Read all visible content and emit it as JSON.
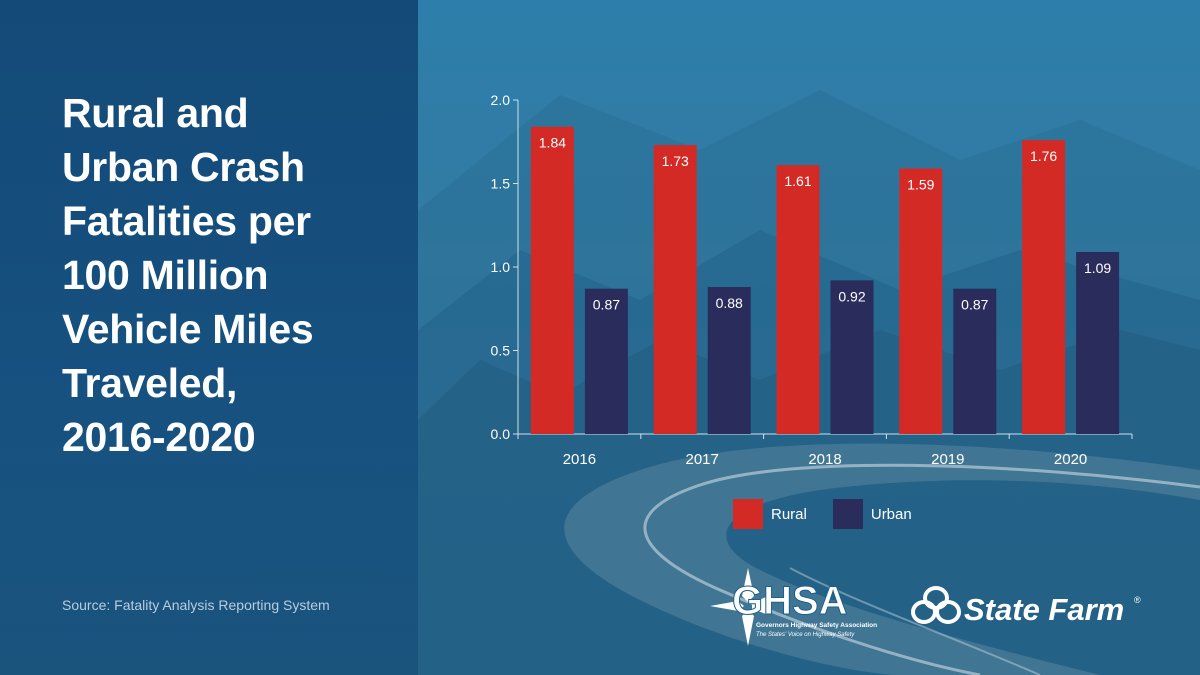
{
  "title_lines": [
    "Rural and",
    "Urban Crash",
    "Fatalities per",
    "100 Million",
    "Vehicle Miles",
    "Traveled,",
    "2016-2020"
  ],
  "source": "Source: Fatality Analysis Reporting System",
  "colors": {
    "rural": "#d42a26",
    "urban": "#2a2c5c",
    "panel": "#134c7a",
    "text": "#ffffff"
  },
  "legend": [
    {
      "label": "Rural",
      "color": "#d42a26"
    },
    {
      "label": "Urban",
      "color": "#2a2c5c"
    }
  ],
  "logos": {
    "ghsa": {
      "name": "GHSA",
      "line1": "Governors Highway Safety Association",
      "line2": "The States' Voice on Highway Safety"
    },
    "statefarm": {
      "name": "State Farm"
    }
  },
  "chart_data": {
    "type": "bar",
    "title": "Rural and Urban Crash Fatalities per 100 Million Vehicle Miles Traveled, 2016-2020",
    "categories": [
      "2016",
      "2017",
      "2018",
      "2019",
      "2020"
    ],
    "series": [
      {
        "name": "Rural",
        "values": [
          1.84,
          1.73,
          1.61,
          1.59,
          1.76
        ],
        "labels": [
          "1.84",
          "1.73",
          "1.61",
          "1.59",
          "1.76"
        ]
      },
      {
        "name": "Urban",
        "values": [
          0.87,
          0.88,
          0.92,
          0.87,
          1.09
        ],
        "labels": [
          "0.87",
          "0.88",
          "0.92",
          "0.87",
          "1.09"
        ]
      }
    ],
    "ylim": [
      0,
      2.0
    ],
    "yticks": [
      0,
      0.5,
      1.0,
      1.5,
      2.0
    ],
    "ytick_labels": [
      "0.0",
      "0.5",
      "1.0",
      "1.5",
      "2.0"
    ],
    "xlabel": "",
    "ylabel": "",
    "legend_position": "bottom"
  }
}
